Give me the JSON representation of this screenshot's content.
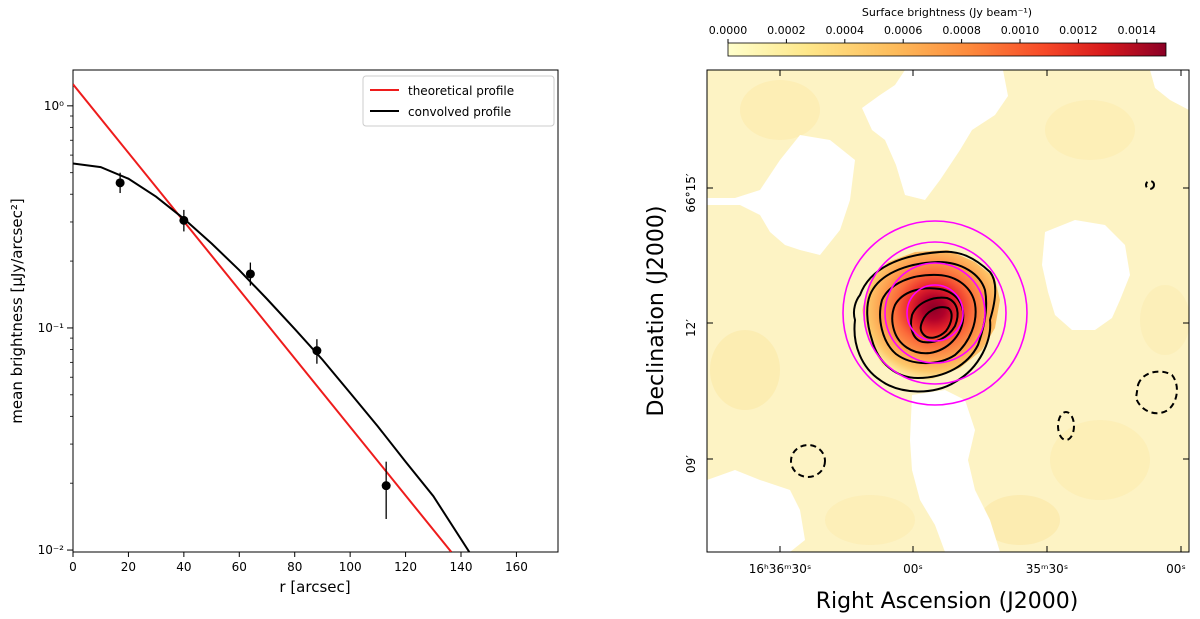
{
  "chart_data": [
    {
      "type": "scatter",
      "panel": "left",
      "title": "",
      "xlabel": "r [arcsec]",
      "ylabel": "mean brightness [μJy/arcsec²]",
      "xlim": [
        0,
        175
      ],
      "ylim": [
        0.0098,
        1.45
      ],
      "yscale": "log",
      "xticks": [
        0,
        20,
        40,
        60,
        80,
        100,
        120,
        140,
        160
      ],
      "xtick_labels": [
        "0",
        "20",
        "40",
        "60",
        "80",
        "100",
        "120",
        "140",
        "160"
      ],
      "yticks": [
        1.0,
        0.1,
        0.01
      ],
      "ytick_labels": [
        "10⁰",
        "10⁻¹",
        "10⁻²"
      ],
      "legend_position": "top-right",
      "series": [
        {
          "name": "theoretical profile",
          "kind": "line",
          "color": "#ee1c1c",
          "x": [
            0,
            136.5
          ],
          "y": [
            1.25,
            0.0098
          ]
        },
        {
          "name": "convolved profile",
          "kind": "line",
          "color": "#000000",
          "x": [
            0,
            10,
            20,
            30,
            40,
            50,
            60,
            70,
            80,
            90,
            100,
            110,
            120,
            130,
            143
          ],
          "y": [
            0.55,
            0.53,
            0.47,
            0.39,
            0.31,
            0.24,
            0.182,
            0.135,
            0.099,
            0.072,
            0.051,
            0.036,
            0.025,
            0.0175,
            0.0098
          ]
        },
        {
          "name": "data",
          "kind": "errorbar",
          "color": "#000000",
          "x": [
            17,
            40,
            64,
            88,
            113
          ],
          "y": [
            0.45,
            0.305,
            0.175,
            0.079,
            0.0195
          ],
          "yerr_low": [
            0.405,
            0.272,
            0.155,
            0.069,
            0.0138
          ],
          "yerr_high": [
            0.5,
            0.34,
            0.197,
            0.089,
            0.025
          ]
        }
      ]
    },
    {
      "type": "heatmap",
      "panel": "right",
      "xlabel": "Right Ascension (J2000)",
      "ylabel": "Declination (J2000)",
      "colorbar_label": "Surface brightness (Jy beam⁻¹)",
      "colorbar_range": [
        0.0,
        0.0015
      ],
      "colorbar_ticks": [
        "0.0000",
        "0.0002",
        "0.0004",
        "0.0006",
        "0.0008",
        "0.0010",
        "0.0012",
        "0.0014"
      ],
      "colorbar_position": "top",
      "colormap": [
        "#ffffcc",
        "#fee78a",
        "#fdbb5a",
        "#fd8a3c",
        "#f74a28",
        "#d7191c",
        "#8b0026"
      ],
      "ra_ticks": [
        "16ʰ36ᵐ30ˢ",
        "00ˢ",
        "35ᵐ30ˢ",
        "00ˢ"
      ],
      "dec_ticks": [
        "66°15′",
        "12′",
        "09′"
      ],
      "aperture_color": "#ff00ff",
      "aperture_count": 4
    }
  ]
}
